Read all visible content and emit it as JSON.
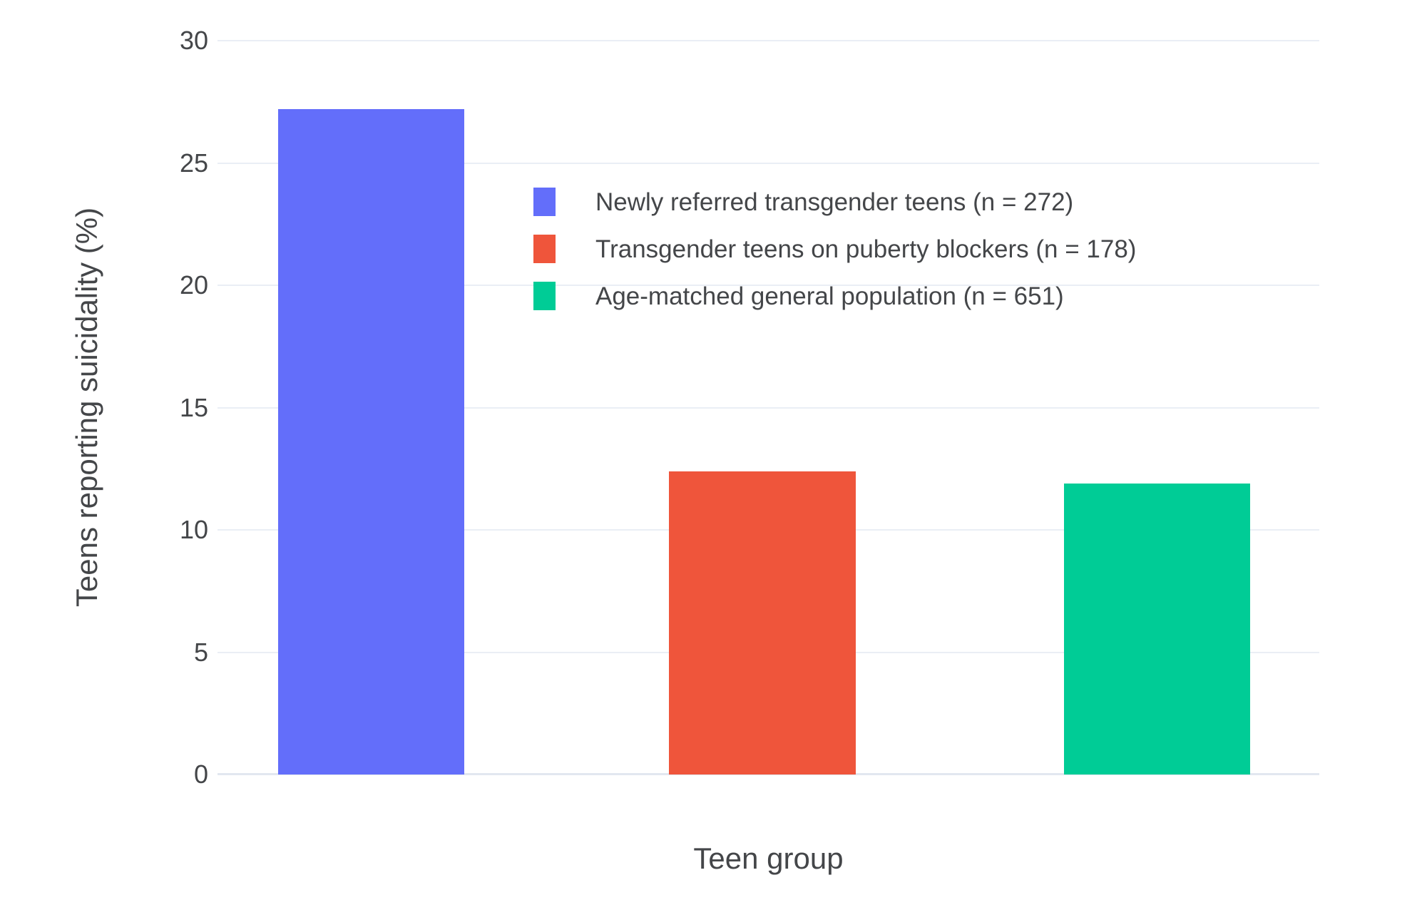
{
  "figure": {
    "y_axis_title": "Teens reporting suicidality (%)",
    "x_axis_title": "Teen group"
  },
  "colors": {
    "bar_blue": "#636EFA",
    "bar_red": "#EF553B",
    "bar_green": "#00CC96",
    "gridline": "#EAEEF5",
    "zeroline": "#E2E7F0",
    "text": "#444649"
  },
  "chart_data": {
    "type": "bar",
    "title": "",
    "xlabel": "Teen group",
    "ylabel": "Teens reporting suicidality (%)",
    "ylim": [
      0,
      30
    ],
    "yticks": [
      0,
      5,
      10,
      15,
      20,
      25,
      30
    ],
    "grid": true,
    "legend_position": "inside plot, upper area left of center",
    "x_tick_labels": [],
    "categories": [
      "Newly referred transgender teens (n = 272)",
      "Transgender teens on puberty blockers (n = 178)",
      "Age-matched general population (n = 651)"
    ],
    "series": [
      {
        "name": "Newly referred transgender teens (n = 272)",
        "slug": "newly-referred-transgender-teens",
        "value": 27.2,
        "color": "#636EFA"
      },
      {
        "name": "Transgender teens on puberty blockers (n = 178)",
        "slug": "transgender-teens-on-puberty-blockers",
        "value": 12.4,
        "color": "#EF553B"
      },
      {
        "name": "Age-matched general population (n = 651)",
        "slug": "age-matched-general-population",
        "value": 11.9,
        "color": "#00CC96"
      }
    ]
  }
}
